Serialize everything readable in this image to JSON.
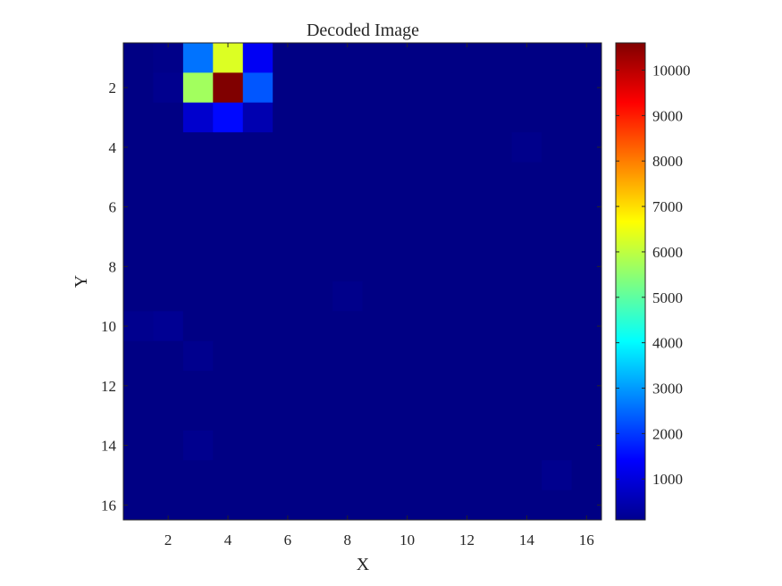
{
  "chart_data": {
    "type": "heatmap",
    "title": "Decoded Image",
    "xlabel": "X",
    "ylabel": "Y",
    "colormap": "jet",
    "x_range": [
      1,
      16
    ],
    "y_range": [
      1,
      16
    ],
    "y_direction": "reversed",
    "x_ticks": [
      2,
      4,
      6,
      8,
      10,
      12,
      14,
      16
    ],
    "y_ticks": [
      2,
      4,
      6,
      8,
      10,
      12,
      14,
      16
    ],
    "color_limits": [
      100,
      10600
    ],
    "colorbar_ticks": [
      1000,
      2000,
      3000,
      4000,
      5000,
      6000,
      7000,
      8000,
      9000,
      10000
    ],
    "background_value": 150,
    "cells": [
      {
        "x": 1,
        "y": 1,
        "value": 150
      },
      {
        "x": 2,
        "y": 1,
        "value": 200
      },
      {
        "x": 3,
        "y": 1,
        "value": 2600
      },
      {
        "x": 4,
        "y": 1,
        "value": 6300
      },
      {
        "x": 5,
        "y": 1,
        "value": 1300
      },
      {
        "x": 1,
        "y": 2,
        "value": 150
      },
      {
        "x": 2,
        "y": 2,
        "value": 250
      },
      {
        "x": 3,
        "y": 2,
        "value": 5700
      },
      {
        "x": 4,
        "y": 2,
        "value": 10600
      },
      {
        "x": 5,
        "y": 2,
        "value": 2300
      },
      {
        "x": 3,
        "y": 3,
        "value": 900
      },
      {
        "x": 4,
        "y": 3,
        "value": 1500
      },
      {
        "x": 5,
        "y": 3,
        "value": 600
      },
      {
        "x": 1,
        "y": 10,
        "value": 250
      },
      {
        "x": 2,
        "y": 10,
        "value": 300
      },
      {
        "x": 3,
        "y": 11,
        "value": 250
      },
      {
        "x": 3,
        "y": 14,
        "value": 250
      },
      {
        "x": 8,
        "y": 9,
        "value": 220
      },
      {
        "x": 15,
        "y": 15,
        "value": 250
      },
      {
        "x": 14,
        "y": 4,
        "value": 220
      }
    ]
  }
}
